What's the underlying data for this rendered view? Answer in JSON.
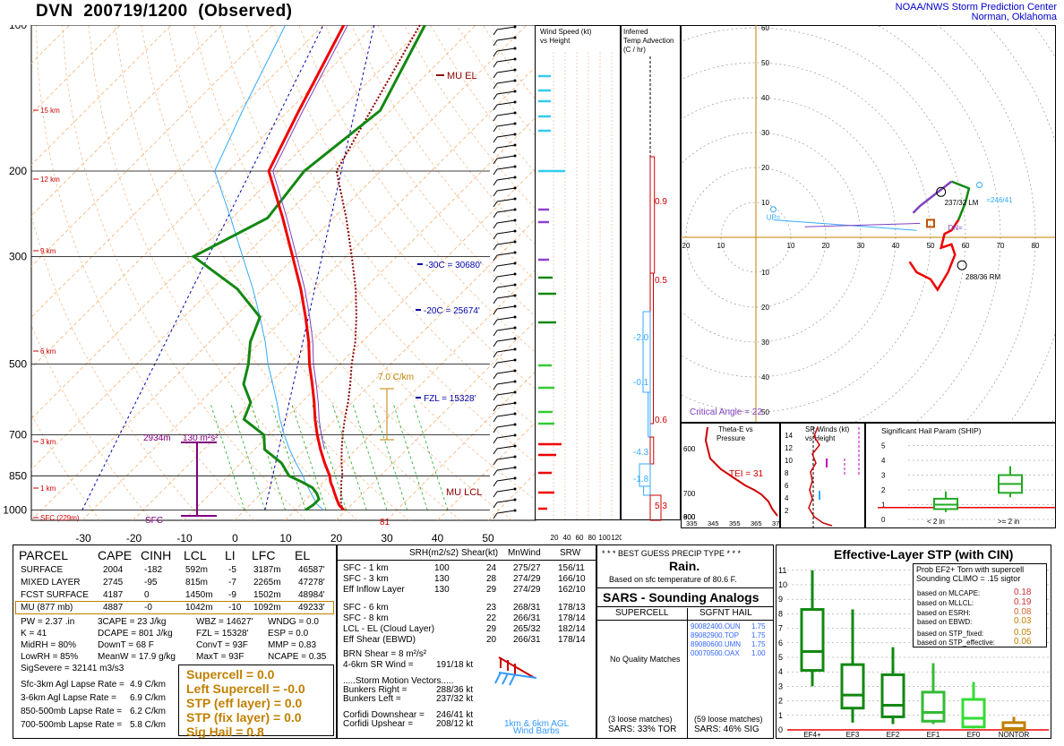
{
  "header": {
    "station": "DVN",
    "datetime": "200719/1200",
    "status": "(Observed)",
    "org_line1": "NOAA/NWS Storm Prediction Center",
    "org_line2": "Norman, Oklahoma"
  },
  "skewt": {
    "pressure_ticks": [
      "100",
      "200",
      "300",
      "500",
      "700",
      "850",
      "1000"
    ],
    "temp_ticks": [
      "-30",
      "-20",
      "-10",
      "0",
      "10",
      "20",
      "30",
      "40",
      "50"
    ],
    "height_labels": [
      "15 km",
      "12 km",
      "9 km",
      "6 km",
      "3 km",
      "1 km",
      "SFC (229m)"
    ],
    "annotations": {
      "mu_el": "MU EL",
      "mu_lcl": "MU LCL",
      "m30c": "-30C = 30680'",
      "m20c": "-20C = 25674'",
      "fzl": "FZL = 15328'",
      "lapse": "7.0 C/km",
      "eff_inflow": "2934m",
      "eff_srh": "130 m²s²",
      "sfc": "SFC",
      "dewpt_sfc": "81"
    }
  },
  "wind_panel": {
    "title1": "Wind Speed (kt)",
    "title2": "vs Height",
    "ticks": [
      "20",
      "40",
      "60",
      "80",
      "100",
      "120"
    ]
  },
  "tadv_panel": {
    "title1": "Inferred",
    "title2": "Temp Advection",
    "title3": "(C / hr)",
    "values": [
      "0.9",
      "0.5",
      "-2.0",
      "-0.1",
      "0.6",
      "-4.3",
      "-1.8",
      "5.3"
    ]
  },
  "hodograph": {
    "ring_labels": [
      "10",
      "20",
      "30",
      "40",
      "50",
      "60",
      "70"
    ],
    "axis_labels": [
      "30",
      "20",
      "10",
      "10",
      "20",
      "30",
      "40",
      "50",
      "60",
      "70",
      "80",
      "90",
      "100"
    ],
    "bunkers_left": "237/32 LM",
    "bunkers_right": "288/36 RM",
    "storm_motion_label": "=246/41",
    "up": "UP=",
    "dn": "DN=",
    "critical_angle": "Critical Angle = 22"
  },
  "theta_panel": {
    "title1": "Theta-E vs",
    "title2": "Pressure",
    "tei": "TEI = 31",
    "p_ticks": [
      "600",
      "700",
      "800",
      "900"
    ],
    "x_ticks": [
      "335",
      "345",
      "355",
      "365",
      "375"
    ]
  },
  "srwind_panel": {
    "title1": "SR Winds (kt)",
    "title2": "vs Height",
    "classic1": "classic",
    "classic2": "supercell",
    "km_ticks": [
      "14",
      "12",
      "10",
      "8",
      "6",
      "4",
      "2"
    ]
  },
  "ship_panel": {
    "title": "Significant Hail Param (SHIP)",
    "ticks": [
      "5",
      "4",
      "3",
      "2",
      "1",
      "0"
    ],
    "cat1": "< 2 in",
    "cat2": ">= 2 in"
  },
  "parcel_table": {
    "headers": [
      "PARCEL",
      "CAPE",
      "CINH",
      "LCL",
      "LI",
      "LFC",
      "EL"
    ],
    "rows": [
      [
        "SURFACE",
        "2004",
        "-182",
        "592m",
        "-5",
        "3187m",
        "46587'"
      ],
      [
        "MIXED LAYER",
        "2745",
        "-95",
        "815m",
        "-7",
        "2265m",
        "47278'"
      ],
      [
        "FCST SURFACE",
        "4187",
        "0",
        "1450m",
        "-9",
        "1502m",
        "48984'"
      ],
      [
        "MU   (877 mb)",
        "4887",
        "-0",
        "1042m",
        "-10",
        "1092m",
        "49233'"
      ]
    ]
  },
  "thermo_params": {
    "col1": [
      "PW = 2.37 .in",
      "K = 41",
      "MidRH = 80%",
      "LowRH = 85%",
      "SigSevere = 32141 m3/s3"
    ],
    "col2": [
      "3CAPE = 23 J/kg",
      "DCAPE = 801 J/kg",
      "DownT = 68 F",
      "MeanW = 17.9 g/kg"
    ],
    "col3": [
      "WBZ = 14627'",
      "FZL = 15328'",
      "ConvT = 93F",
      "MaxT = 93F"
    ],
    "col4": [
      "WNDG = 0.0",
      "ESP = 0.0",
      "MMP = 0.83",
      "NCAPE = 0.35"
    ]
  },
  "lapse_rates": [
    [
      "Sfc-3km Agl Lapse Rate =",
      "4.9 C/km"
    ],
    [
      "3-6km Agl Lapse Rate =",
      "6.9 C/km"
    ],
    [
      "850-500mb Lapse Rate =",
      "6.2 C/km"
    ],
    [
      "700-500mb Lapse Rate =",
      "5.8 C/km"
    ]
  ],
  "composite": {
    "supercell": "Supercell = 0.0",
    "left_supercell": "Left Supercell = -0.0",
    "stp_eff": "STP (eff layer) = 0.0",
    "stp_fix": "STP (fix layer) = 0.0",
    "sig_hail": "Sig Hail = 0.8"
  },
  "kinematic": {
    "headers": [
      "SRH(m2/s2)",
      "Shear(kt)",
      "MnWind",
      "SRW"
    ],
    "rows": [
      [
        "SFC - 1 km",
        "100",
        "24",
        "275/27",
        "156/11"
      ],
      [
        "SFC - 3 km",
        "130",
        "28",
        "274/29",
        "166/10"
      ],
      [
        "Eff Inflow Layer",
        "130",
        "29",
        "274/29",
        "162/10"
      ],
      [
        "SFC - 6 km",
        "",
        "23",
        "268/31",
        "178/13"
      ],
      [
        "SFC - 8 km",
        "",
        "22",
        "266/31",
        "178/14"
      ],
      [
        "LCL - EL (Cloud Layer)",
        "",
        "29",
        "265/32",
        "182/14"
      ],
      [
        "Eff Shear (EBWD)",
        "",
        "20",
        "266/31",
        "178/14"
      ]
    ],
    "brn_shear": "BRN Shear = 8 m²/s²",
    "sr_wind_label": "4-6km SR Wind =",
    "sr_wind_value": "191/18 kt",
    "storm_motion_title": ".....Storm Motion Vectors.....",
    "bunkers_right_label": "Bunkers Right =",
    "bunkers_right": "288/36 kt",
    "bunkers_left_label": "Bunkers Left =",
    "bunkers_left": "237/32 kt",
    "corfidi_down_label": "Corfidi Downshear =",
    "corfidi_down": "246/41 kt",
    "corfidi_up_label": "Corfidi Upshear =",
    "corfidi_up": "208/12 kt",
    "barbs_label1": "1km & 6km AGL",
    "barbs_label2": "Wind Barbs"
  },
  "precip": {
    "title": "* * * BEST GUESS PRECIP TYPE * * *",
    "type": "Rain.",
    "note": "Based on sfc temperature of 80.6 F."
  },
  "sars": {
    "title": "SARS - Sounding Analogs",
    "supercell_head": "SUPERCELL",
    "hail_head": "SGFNT HAIL",
    "supercell_msg": "No Quality Matches",
    "hail_matches": [
      [
        "90082400.OUN",
        "1.75"
      ],
      [
        "89082900.TOP",
        "1.75"
      ],
      [
        "89080600.UMN",
        "1.75"
      ],
      [
        "00070500.OAX",
        "1.00"
      ]
    ],
    "supercell_loose": "(3 loose matches)",
    "hail_loose": "(59 loose matches)",
    "tor_pct": "SARS:  33% TOR",
    "sig_pct": "SARS:  46% SIG"
  },
  "stp_panel": {
    "title": "Effective-Layer STP (with CIN)",
    "prob_title1": "Prob EF2+ Torn with supercell",
    "prob_title2": "Sounding CLIMO = .15 sigtor",
    "probs": [
      [
        "based on MLCAPE:",
        "0.18"
      ],
      [
        "based on MLLCL:",
        "0.19"
      ],
      [
        "based on ESRH:",
        "0.08"
      ],
      [
        "based on EBWD:",
        "0.03"
      ],
      [
        "based on STP_fixed:",
        "0.05"
      ],
      [
        "based on STP_effective:",
        "0.06"
      ]
    ],
    "y_ticks": [
      "11",
      "10",
      "9",
      "8",
      "7",
      "6",
      "5",
      "4",
      "3",
      "2",
      "1",
      "0"
    ],
    "categories": [
      "EF4+",
      "EF3",
      "EF2",
      "EF1",
      "EF0",
      "NONTOR"
    ]
  },
  "chart_data": {
    "type": "line",
    "title": "DVN 200719/1200 (Observed)",
    "xlabel": "",
    "ylabel": "",
    "ylim": [
      1000,
      100
    ],
    "xlim": [
      -30,
      50
    ],
    "series": [
      {
        "pressure": [
          1000,
          975,
          950,
          925,
          900,
          877,
          850,
          800,
          750,
          700,
          650,
          600,
          550,
          500,
          450,
          400,
          350,
          300,
          250,
          200,
          150,
          100
        ],
        "values": [
          29.5,
          27.5,
          26,
          24.5,
          23,
          21.5,
          20,
          16.5,
          13,
          9.5,
          6,
          2.5,
          -1.5,
          -6,
          -10.5,
          -16,
          -22.5,
          -30.5,
          -40,
          -52,
          -58,
          -66
        ]
      },
      {
        "pressure": [
          1000,
          975,
          950,
          925,
          900,
          877,
          850,
          800,
          750,
          700,
          650,
          600,
          550,
          500,
          450,
          400,
          350,
          300,
          250,
          200,
          150,
          100
        ],
        "values": [
          22,
          22.5,
          22.5,
          21,
          19,
          16,
          12,
          8,
          2,
          -1,
          -8,
          -10,
          -15,
          -18,
          -22,
          -25,
          -35,
          -50,
          -43,
          -45,
          -42,
          -50
        ]
      }
    ],
    "stp_boxes": [
      {
        "category": "EF4+",
        "min": 3.0,
        "q1": 4.1,
        "median": 5.4,
        "q3": 8.3,
        "max": 11.0
      },
      {
        "category": "EF3",
        "min": 0.5,
        "q1": 1.5,
        "median": 2.4,
        "q3": 4.5,
        "max": 8.3
      },
      {
        "category": "EF2",
        "min": 0.4,
        "q1": 0.9,
        "median": 1.7,
        "q3": 3.8,
        "max": 5.7
      },
      {
        "category": "EF1",
        "min": 0.4,
        "q1": 0.6,
        "median": 1.2,
        "q3": 2.6,
        "max": 4.6
      },
      {
        "category": "EF0",
        "min": 0.1,
        "q1": 0.2,
        "median": 0.8,
        "q3": 2.1,
        "max": 3.3
      },
      {
        "category": "NONTOR",
        "min": 0.0,
        "q1": 0.0,
        "median": 0.1,
        "q3": 0.5,
        "max": 0.9
      }
    ],
    "ship_boxes": [
      {
        "category": "< 2 in",
        "min": 0.5,
        "q1": 0.7,
        "median": 1.0,
        "q3": 1.4,
        "max": 1.9
      },
      {
        "category": ">= 2 in",
        "min": 1.5,
        "q1": 1.8,
        "median": 2.4,
        "q3": 3.0,
        "max": 3.6
      }
    ]
  }
}
